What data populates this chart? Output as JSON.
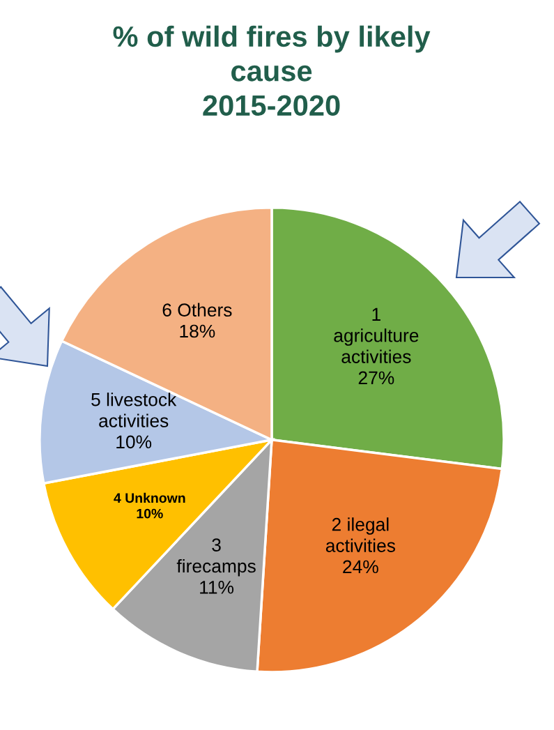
{
  "chart_data": {
    "type": "pie",
    "title": "% of wild fires by likely\ncause\n2015-2020",
    "categories": [
      "1\nagriculture\nactivities",
      "2 ilegal\nactivities",
      "3\nfirecamps",
      "4 Unknown",
      "5 livestock\nactivities",
      "6 Others"
    ],
    "values": [
      27,
      24,
      11,
      10,
      10,
      18
    ],
    "colors": [
      "#70ad47",
      "#ed7d31",
      "#a5a5a5",
      "#ffc000",
      "#b4c7e7",
      "#f4b183"
    ],
    "value_labels": [
      "27%",
      "24%",
      "11%",
      "10%",
      "10%",
      "18%"
    ]
  }
}
